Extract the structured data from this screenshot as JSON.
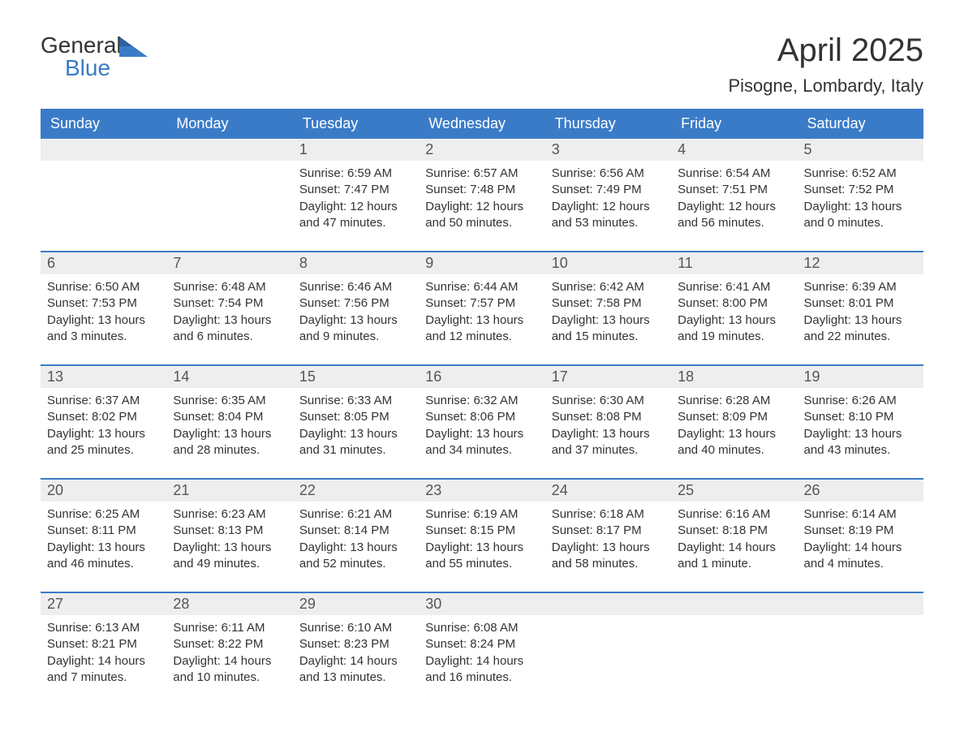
{
  "logo": {
    "text_general": "General",
    "text_blue": "Blue",
    "icon_color": "#3a7bc8"
  },
  "title": "April 2025",
  "location": "Pisogne, Lombardy, Italy",
  "colors": {
    "header_bg": "#3a7bc8",
    "header_text": "#ffffff",
    "day_number_bg": "#eeeeee",
    "text": "#333333",
    "border": "#3a7bc8",
    "background": "#ffffff"
  },
  "day_headers": [
    "Sunday",
    "Monday",
    "Tuesday",
    "Wednesday",
    "Thursday",
    "Friday",
    "Saturday"
  ],
  "weeks": [
    [
      {
        "num": "",
        "sunrise": "",
        "sunset": "",
        "daylight": ""
      },
      {
        "num": "",
        "sunrise": "",
        "sunset": "",
        "daylight": ""
      },
      {
        "num": "1",
        "sunrise": "Sunrise: 6:59 AM",
        "sunset": "Sunset: 7:47 PM",
        "daylight": "Daylight: 12 hours and 47 minutes."
      },
      {
        "num": "2",
        "sunrise": "Sunrise: 6:57 AM",
        "sunset": "Sunset: 7:48 PM",
        "daylight": "Daylight: 12 hours and 50 minutes."
      },
      {
        "num": "3",
        "sunrise": "Sunrise: 6:56 AM",
        "sunset": "Sunset: 7:49 PM",
        "daylight": "Daylight: 12 hours and 53 minutes."
      },
      {
        "num": "4",
        "sunrise": "Sunrise: 6:54 AM",
        "sunset": "Sunset: 7:51 PM",
        "daylight": "Daylight: 12 hours and 56 minutes."
      },
      {
        "num": "5",
        "sunrise": "Sunrise: 6:52 AM",
        "sunset": "Sunset: 7:52 PM",
        "daylight": "Daylight: 13 hours and 0 minutes."
      }
    ],
    [
      {
        "num": "6",
        "sunrise": "Sunrise: 6:50 AM",
        "sunset": "Sunset: 7:53 PM",
        "daylight": "Daylight: 13 hours and 3 minutes."
      },
      {
        "num": "7",
        "sunrise": "Sunrise: 6:48 AM",
        "sunset": "Sunset: 7:54 PM",
        "daylight": "Daylight: 13 hours and 6 minutes."
      },
      {
        "num": "8",
        "sunrise": "Sunrise: 6:46 AM",
        "sunset": "Sunset: 7:56 PM",
        "daylight": "Daylight: 13 hours and 9 minutes."
      },
      {
        "num": "9",
        "sunrise": "Sunrise: 6:44 AM",
        "sunset": "Sunset: 7:57 PM",
        "daylight": "Daylight: 13 hours and 12 minutes."
      },
      {
        "num": "10",
        "sunrise": "Sunrise: 6:42 AM",
        "sunset": "Sunset: 7:58 PM",
        "daylight": "Daylight: 13 hours and 15 minutes."
      },
      {
        "num": "11",
        "sunrise": "Sunrise: 6:41 AM",
        "sunset": "Sunset: 8:00 PM",
        "daylight": "Daylight: 13 hours and 19 minutes."
      },
      {
        "num": "12",
        "sunrise": "Sunrise: 6:39 AM",
        "sunset": "Sunset: 8:01 PM",
        "daylight": "Daylight: 13 hours and 22 minutes."
      }
    ],
    [
      {
        "num": "13",
        "sunrise": "Sunrise: 6:37 AM",
        "sunset": "Sunset: 8:02 PM",
        "daylight": "Daylight: 13 hours and 25 minutes."
      },
      {
        "num": "14",
        "sunrise": "Sunrise: 6:35 AM",
        "sunset": "Sunset: 8:04 PM",
        "daylight": "Daylight: 13 hours and 28 minutes."
      },
      {
        "num": "15",
        "sunrise": "Sunrise: 6:33 AM",
        "sunset": "Sunset: 8:05 PM",
        "daylight": "Daylight: 13 hours and 31 minutes."
      },
      {
        "num": "16",
        "sunrise": "Sunrise: 6:32 AM",
        "sunset": "Sunset: 8:06 PM",
        "daylight": "Daylight: 13 hours and 34 minutes."
      },
      {
        "num": "17",
        "sunrise": "Sunrise: 6:30 AM",
        "sunset": "Sunset: 8:08 PM",
        "daylight": "Daylight: 13 hours and 37 minutes."
      },
      {
        "num": "18",
        "sunrise": "Sunrise: 6:28 AM",
        "sunset": "Sunset: 8:09 PM",
        "daylight": "Daylight: 13 hours and 40 minutes."
      },
      {
        "num": "19",
        "sunrise": "Sunrise: 6:26 AM",
        "sunset": "Sunset: 8:10 PM",
        "daylight": "Daylight: 13 hours and 43 minutes."
      }
    ],
    [
      {
        "num": "20",
        "sunrise": "Sunrise: 6:25 AM",
        "sunset": "Sunset: 8:11 PM",
        "daylight": "Daylight: 13 hours and 46 minutes."
      },
      {
        "num": "21",
        "sunrise": "Sunrise: 6:23 AM",
        "sunset": "Sunset: 8:13 PM",
        "daylight": "Daylight: 13 hours and 49 minutes."
      },
      {
        "num": "22",
        "sunrise": "Sunrise: 6:21 AM",
        "sunset": "Sunset: 8:14 PM",
        "daylight": "Daylight: 13 hours and 52 minutes."
      },
      {
        "num": "23",
        "sunrise": "Sunrise: 6:19 AM",
        "sunset": "Sunset: 8:15 PM",
        "daylight": "Daylight: 13 hours and 55 minutes."
      },
      {
        "num": "24",
        "sunrise": "Sunrise: 6:18 AM",
        "sunset": "Sunset: 8:17 PM",
        "daylight": "Daylight: 13 hours and 58 minutes."
      },
      {
        "num": "25",
        "sunrise": "Sunrise: 6:16 AM",
        "sunset": "Sunset: 8:18 PM",
        "daylight": "Daylight: 14 hours and 1 minute."
      },
      {
        "num": "26",
        "sunrise": "Sunrise: 6:14 AM",
        "sunset": "Sunset: 8:19 PM",
        "daylight": "Daylight: 14 hours and 4 minutes."
      }
    ],
    [
      {
        "num": "27",
        "sunrise": "Sunrise: 6:13 AM",
        "sunset": "Sunset: 8:21 PM",
        "daylight": "Daylight: 14 hours and 7 minutes."
      },
      {
        "num": "28",
        "sunrise": "Sunrise: 6:11 AM",
        "sunset": "Sunset: 8:22 PM",
        "daylight": "Daylight: 14 hours and 10 minutes."
      },
      {
        "num": "29",
        "sunrise": "Sunrise: 6:10 AM",
        "sunset": "Sunset: 8:23 PM",
        "daylight": "Daylight: 14 hours and 13 minutes."
      },
      {
        "num": "30",
        "sunrise": "Sunrise: 6:08 AM",
        "sunset": "Sunset: 8:24 PM",
        "daylight": "Daylight: 14 hours and 16 minutes."
      },
      {
        "num": "",
        "sunrise": "",
        "sunset": "",
        "daylight": ""
      },
      {
        "num": "",
        "sunrise": "",
        "sunset": "",
        "daylight": ""
      },
      {
        "num": "",
        "sunrise": "",
        "sunset": "",
        "daylight": ""
      }
    ]
  ]
}
